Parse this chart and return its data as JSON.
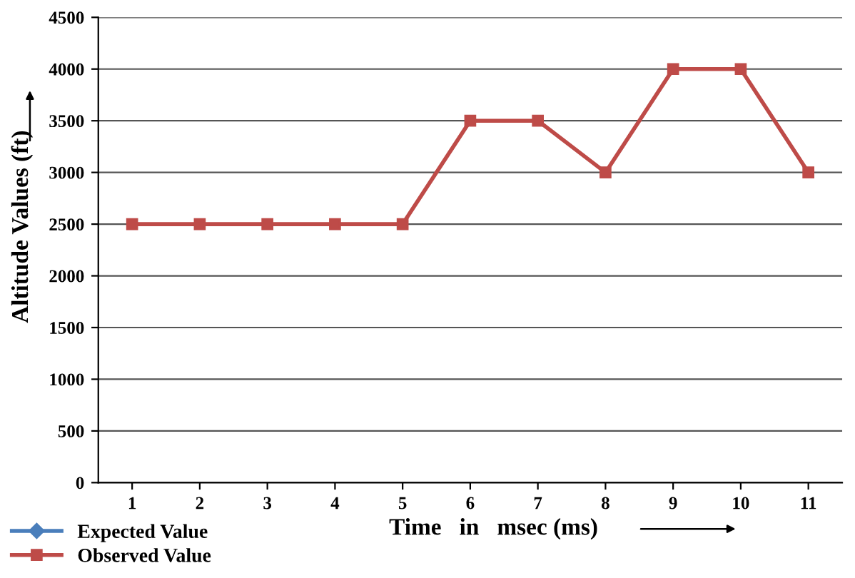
{
  "chart_data": {
    "type": "line",
    "xlabel": "Time   in   msec (ms)",
    "ylabel": "Altitude Values (ft)",
    "categories": [
      "1",
      "2",
      "3",
      "4",
      "5",
      "6",
      "7",
      "8",
      "9",
      "10",
      "11"
    ],
    "series": [
      {
        "name": "Expected Value",
        "color": "#4a7ebb",
        "marker": "diamond",
        "values": [
          null,
          null,
          null,
          null,
          null,
          null,
          null,
          null,
          null,
          null,
          null
        ]
      },
      {
        "name": "Observed Value",
        "color": "#be4b48",
        "marker": "square",
        "values": [
          2500,
          2500,
          2500,
          2500,
          2500,
          3500,
          3500,
          3000,
          4000,
          4000,
          3000
        ]
      }
    ],
    "ylim": [
      0,
      4500
    ],
    "yticks": [
      0,
      500,
      1000,
      1500,
      2000,
      2500,
      3000,
      3500,
      4000,
      4500
    ],
    "grid": "y",
    "legend": "bottom left"
  }
}
